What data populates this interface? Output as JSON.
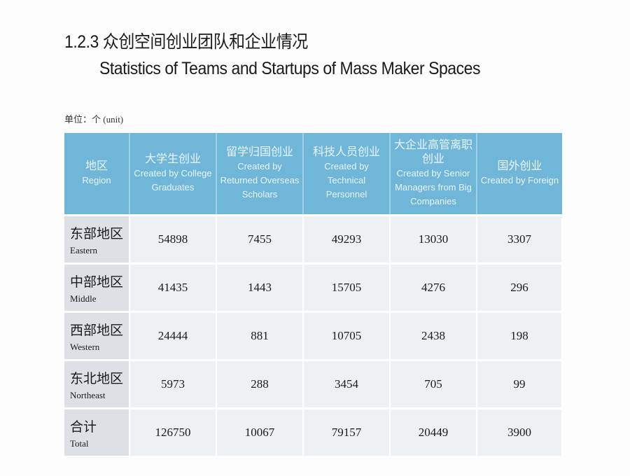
{
  "title_cn": "1.2.3 众创空间创业团队和企业情况",
  "title_en": "Statistics of Teams and Startups of Mass Maker Spaces",
  "unit": "单位：个 (unit)",
  "headers": [
    {
      "cn": "地区",
      "en": "Region"
    },
    {
      "cn": "大学生创业",
      "en": "Created by College Graduates"
    },
    {
      "cn": "留学归国创业",
      "en": "Created by Returned Overseas Scholars"
    },
    {
      "cn": "科技人员创业",
      "en": "Created by Technical Personnel"
    },
    {
      "cn": "大企业高管离职创业",
      "en": "Created by Senior Managers from Big Companies"
    },
    {
      "cn": "国外创业",
      "en": "Created by Foreign"
    }
  ],
  "rows": [
    {
      "cn": "东部地区",
      "en": "Eastern",
      "values": [
        "54898",
        "7455",
        "49293",
        "13030",
        "3307"
      ]
    },
    {
      "cn": "中部地区",
      "en": "Middle",
      "values": [
        "41435",
        "1443",
        "15705",
        "4276",
        "296"
      ]
    },
    {
      "cn": "西部地区",
      "en": "Western",
      "values": [
        "24444",
        "881",
        "10705",
        "2438",
        "198"
      ]
    },
    {
      "cn": "东北地区",
      "en": "Northeast",
      "values": [
        "5973",
        "288",
        "3454",
        "705",
        "99"
      ]
    },
    {
      "cn": "合计",
      "en": "Total",
      "values": [
        "126750",
        "10067",
        "79157",
        "20449",
        "3900"
      ]
    }
  ],
  "colors": {
    "header_bg": "#6fb6d9",
    "cell_bg": "#eef1f4",
    "region_bg": "#dde1e6"
  }
}
